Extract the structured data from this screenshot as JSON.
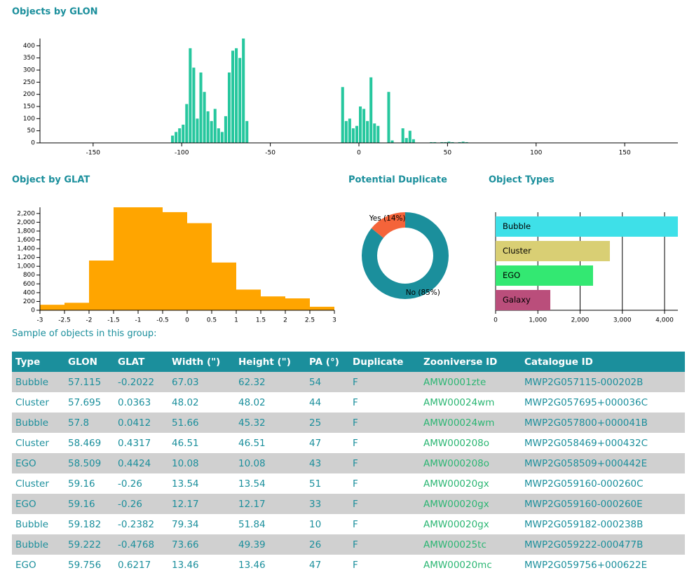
{
  "chart_data": [
    {
      "type": "histogram",
      "title": "Objects by GLON",
      "color": "#26c79e",
      "bins": [
        -106,
        -104,
        -102,
        -100,
        -98,
        -96,
        -94,
        -92,
        -90,
        -88,
        -86,
        -84,
        -82,
        -80,
        -78,
        -76,
        -74,
        -72,
        -70,
        -68,
        -66,
        -64,
        -62,
        -60,
        -58,
        -56,
        -54,
        -52,
        -50,
        -48,
        -46,
        -44,
        -42,
        -40,
        -38,
        -36,
        -34,
        -32,
        -30,
        -28,
        -26,
        -24,
        -22,
        -20,
        -18,
        -16,
        -14,
        -12,
        -10,
        -8,
        -6,
        -4,
        -2,
        0,
        2,
        4,
        6,
        8,
        10,
        12,
        14,
        16,
        18,
        20,
        22,
        24,
        26,
        28,
        30,
        32,
        34,
        36,
        38,
        40,
        42,
        44,
        46,
        48,
        50,
        52,
        54,
        56,
        58,
        60,
        62
      ],
      "values": [
        30,
        45,
        60,
        75,
        160,
        390,
        310,
        100,
        290,
        210,
        130,
        90,
        140,
        60,
        45,
        110,
        290,
        380,
        390,
        350,
        430,
        90,
        0,
        0,
        0,
        0,
        0,
        0,
        0,
        0,
        0,
        0,
        0,
        0,
        0,
        0,
        0,
        0,
        0,
        0,
        0,
        0,
        0,
        0,
        0,
        0,
        0,
        0,
        230,
        90,
        100,
        60,
        70,
        150,
        140,
        90,
        270,
        80,
        70,
        0,
        0,
        210,
        10,
        0,
        0,
        60,
        20,
        50,
        15,
        0,
        0,
        0,
        0,
        3,
        3,
        0,
        3,
        3,
        5,
        3,
        0,
        3,
        5,
        3
      ],
      "xlim": [
        -180,
        180
      ],
      "xticks": [
        -150,
        -100,
        -50,
        0,
        50,
        100,
        150
      ],
      "ylim": [
        0,
        430
      ],
      "yticks": [
        0,
        50,
        100,
        150,
        200,
        250,
        300,
        350,
        400
      ],
      "grid": false
    },
    {
      "type": "histogram",
      "title": "Object by GLAT",
      "color": "#ffa500",
      "bins": [
        -3,
        -2.5,
        -2,
        -1.5,
        -1,
        -0.5,
        0,
        0.5,
        1,
        1.5,
        2,
        2.5,
        3
      ],
      "values": [
        125,
        170,
        1130,
        2340,
        2340,
        2230,
        1980,
        1085,
        470,
        315,
        270,
        80
      ],
      "xlim": [
        -3,
        3
      ],
      "xticks": [
        -3,
        -2.5,
        -2,
        -1.5,
        -1,
        -0.5,
        0,
        0.5,
        1,
        1.5,
        2,
        2.5,
        3
      ],
      "ylim": [
        0,
        2340
      ],
      "yticks": [
        0,
        200,
        400,
        600,
        800,
        {
          "value": 1000,
          "label": "1,000"
        },
        {
          "value": 1200,
          "label": "1,200"
        },
        {
          "value": 1400,
          "label": "1,400"
        },
        {
          "value": 1600,
          "label": "1,600"
        },
        {
          "value": 1800,
          "label": "1,800"
        },
        {
          "value": 2000,
          "label": "2,000"
        },
        {
          "value": 2200,
          "label": "2,200"
        }
      ],
      "grid": false
    },
    {
      "type": "pie",
      "title": "Potential Duplicate",
      "donut": true,
      "categories": [
        "No",
        "Yes"
      ],
      "values": [
        85,
        14
      ],
      "value_labels": [
        "No (85%)",
        "Yes (14%)"
      ],
      "colors": [
        "#1b8f9c",
        "#f4643a"
      ]
    },
    {
      "type": "barh",
      "title": "Object Types",
      "categories": [
        "Bubble",
        "Cluster",
        "EGO",
        "Galaxy"
      ],
      "values": [
        4315,
        2705,
        2307,
        1295
      ],
      "colors": [
        "#3ee0e8",
        "#d9cf74",
        "#33e872",
        "#ba4e7b"
      ],
      "xlim": [
        0,
        4315
      ],
      "xticks": [
        0,
        {
          "value": 1000,
          "label": "1,000"
        },
        {
          "value": 2000,
          "label": "2,000"
        },
        {
          "value": 3000,
          "label": "3,000"
        },
        {
          "value": 4000,
          "label": "4,000"
        }
      ],
      "grid": true
    }
  ],
  "table": {
    "caption": "Sample of objects in this group:",
    "columns": [
      "Type",
      "GLON",
      "GLAT",
      "Width (\")",
      "Height (\")",
      "PA (°)",
      "Duplicate",
      "Zooniverse ID",
      "Catalogue ID"
    ],
    "rows": [
      [
        "Bubble",
        "57.115",
        "-0.2022",
        "67.03",
        "62.32",
        "54",
        "F",
        "AMW0001zte",
        "MWP2G057115-000202B"
      ],
      [
        "Cluster",
        "57.695",
        "0.0363",
        "48.02",
        "48.02",
        "44",
        "F",
        "AMW00024wm",
        "MWP2G057695+000036C"
      ],
      [
        "Bubble",
        "57.8",
        "0.0412",
        "51.66",
        "45.32",
        "25",
        "F",
        "AMW00024wm",
        "MWP2G057800+000041B"
      ],
      [
        "Cluster",
        "58.469",
        "0.4317",
        "46.51",
        "46.51",
        "47",
        "F",
        "AMW000208o",
        "MWP2G058469+000432C"
      ],
      [
        "EGO",
        "58.509",
        "0.4424",
        "10.08",
        "10.08",
        "43",
        "F",
        "AMW000208o",
        "MWP2G058509+000442E"
      ],
      [
        "Cluster",
        "59.16",
        "-0.26",
        "13.54",
        "13.54",
        "51",
        "F",
        "AMW00020gx",
        "MWP2G059160-000260C"
      ],
      [
        "EGO",
        "59.16",
        "-0.26",
        "12.17",
        "12.17",
        "33",
        "F",
        "AMW00020gx",
        "MWP2G059160-000260E"
      ],
      [
        "Bubble",
        "59.182",
        "-0.2382",
        "79.34",
        "51.84",
        "10",
        "F",
        "AMW00020gx",
        "MWP2G059182-000238B"
      ],
      [
        "Bubble",
        "59.222",
        "-0.4768",
        "73.66",
        "49.39",
        "26",
        "F",
        "AMW00025tc",
        "MWP2G059222-000477B"
      ],
      [
        "EGO",
        "59.756",
        "0.6217",
        "13.46",
        "13.46",
        "47",
        "F",
        "AMW00020mc",
        "MWP2G059756+000622E"
      ]
    ]
  }
}
